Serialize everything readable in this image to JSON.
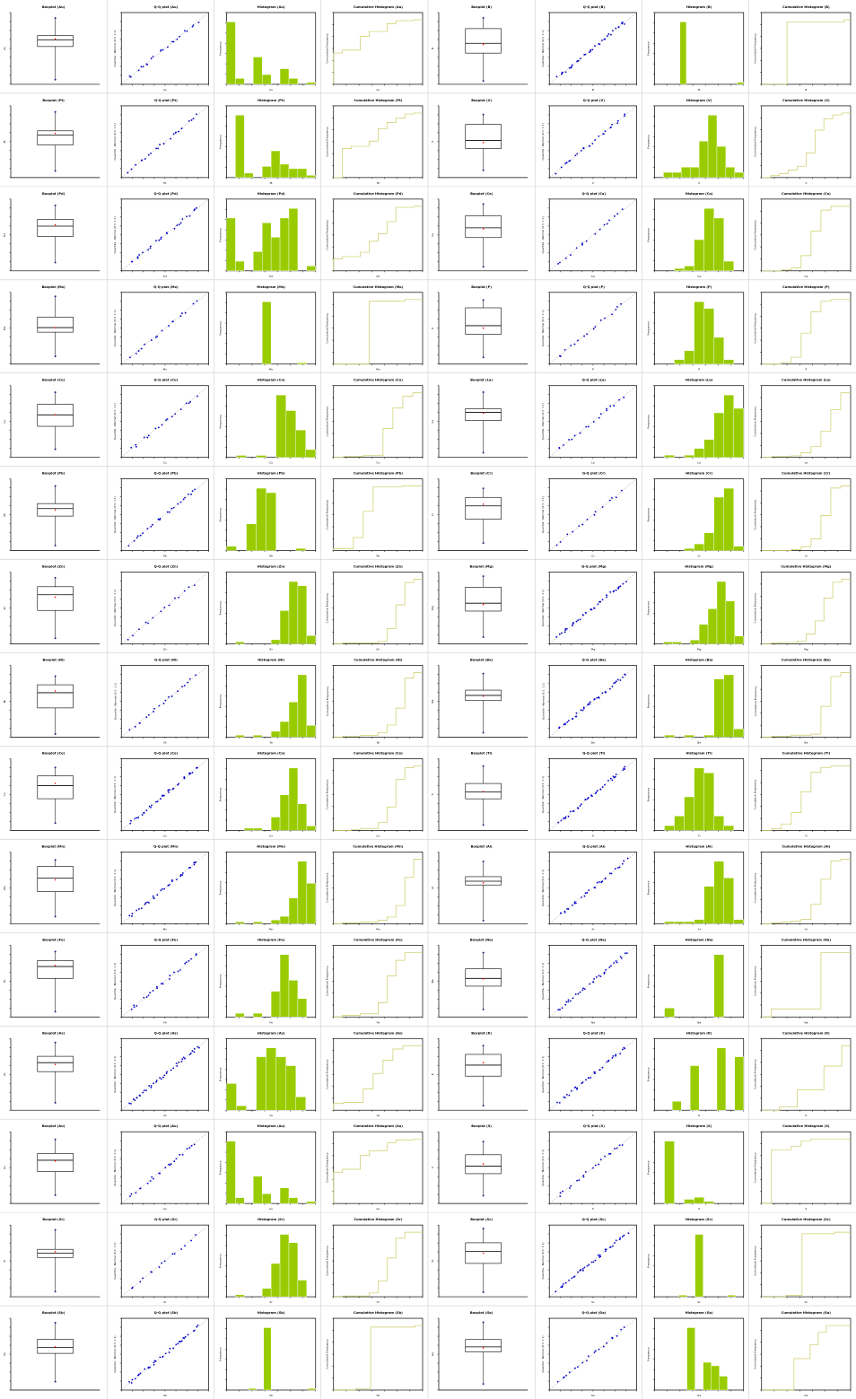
{
  "chart_data": {
    "type": "small-multiples",
    "layout": {
      "rows": 15,
      "cols": 8
    },
    "panel_titles": {
      "boxplot": "Boxplot ({el})",
      "qq": "Q-Q plot ({el})",
      "hist": "Histogram ({el})",
      "cum": "Cumulative Histogram ({el})"
    },
    "axis_labels": {
      "qq_ylabel": "Quantile - Normal (0.5, 1.1)",
      "hist_ylabel": "Frequency",
      "cum_ylabel": "Cumulative Frequency"
    },
    "colors": {
      "bar": "#99cc00",
      "bar_edge": "#000000",
      "points": "#0000cc",
      "cum_line": "#cccc66",
      "mean": "#ff0000",
      "ref_line": "#999999"
    },
    "elements": [
      [
        "Au",
        "B"
      ],
      [
        "Pt",
        "V"
      ],
      [
        "Pd",
        "Ca"
      ],
      [
        "Mo",
        "P"
      ],
      [
        "Cu",
        "La"
      ],
      [
        "Pb",
        "Cr"
      ],
      [
        "Zn",
        "Mg"
      ],
      [
        "Ni",
        "Ba"
      ],
      [
        "Co",
        "Ti"
      ],
      [
        "Mn",
        "Al"
      ],
      [
        "Fe",
        "Na"
      ],
      [
        "As",
        "K"
      ],
      [
        "Au",
        "S"
      ],
      [
        "Sr",
        "Sc"
      ],
      [
        "Sb",
        "Ga"
      ]
    ],
    "hist_counts": {
      "Au": [
        32,
        3,
        0,
        14,
        5,
        0,
        8,
        3,
        0,
        1
      ],
      "B": [
        0,
        0,
        0,
        0,
        30,
        0,
        0,
        0,
        0,
        0,
        0,
        0,
        0,
        1
      ],
      "Pt": [
        0,
        28,
        2,
        0,
        5,
        12,
        6,
        4,
        4,
        1
      ],
      "V": [
        0,
        2,
        2,
        4,
        4,
        14,
        24,
        12,
        4,
        2
      ],
      "Pd": [
        22,
        4,
        0,
        8,
        20,
        14,
        22,
        26,
        0,
        2
      ],
      "Ca": [
        0,
        0,
        1,
        2,
        13,
        26,
        22,
        4,
        0
      ],
      "Mo": [
        0,
        0,
        0,
        0,
        45,
        0,
        0,
        0,
        1,
        0
      ],
      "P": [
        0,
        0,
        2,
        6,
        28,
        25,
        12,
        2,
        0
      ],
      "Cu": [
        0,
        1,
        0,
        1,
        0,
        32,
        24,
        14,
        4
      ],
      "La": [
        0,
        1,
        0,
        1,
        4,
        8,
        20,
        28,
        22
      ],
      "Pb": [
        2,
        0,
        12,
        28,
        26,
        0,
        0,
        1,
        0
      ],
      "Cr": [
        0,
        0,
        0,
        1,
        3,
        8,
        24,
        28,
        2
      ],
      "Zn": [
        0,
        1,
        0,
        0,
        0,
        2,
        16,
        30,
        28,
        4
      ],
      "Mg": [
        0,
        1,
        1,
        0,
        2,
        10,
        18,
        32,
        22,
        4
      ],
      "Ni": [
        0,
        1,
        0,
        1,
        0,
        3,
        8,
        18,
        32,
        6
      ],
      "Ba": [
        0,
        1,
        0,
        1,
        0,
        1,
        28,
        30,
        4
      ],
      "Co": [
        0,
        0,
        1,
        1,
        0,
        6,
        16,
        28,
        12,
        2
      ],
      "Ti": [
        0,
        2,
        6,
        14,
        26,
        24,
        6,
        2,
        0
      ],
      "Mn": [
        0,
        1,
        0,
        1,
        0,
        2,
        4,
        14,
        34,
        22
      ],
      "Al": [
        0,
        1,
        1,
        1,
        2,
        18,
        30,
        22,
        2
      ],
      "Fe": [
        0,
        2,
        0,
        2,
        0,
        14,
        34,
        20,
        10,
        0
      ],
      "Na": [
        0,
        2,
        0,
        0,
        0,
        0,
        14,
        0,
        0
      ],
      "As": [
        6,
        1,
        0,
        12,
        14,
        12,
        10,
        3,
        0
      ],
      "K": [
        0,
        0,
        1,
        0,
        5,
        0,
        0,
        7,
        0,
        6
      ],
      "Sr": [
        0,
        1,
        0,
        0,
        4,
        16,
        30,
        26,
        8,
        0
      ],
      "Sc": [
        0,
        0,
        0,
        1,
        0,
        40,
        0,
        0,
        0,
        1,
        0
      ],
      "Sb": [
        0,
        0,
        0,
        1,
        0,
        38,
        0,
        0,
        0,
        0,
        0,
        1
      ],
      "Ga": [
        0,
        0,
        0,
        0,
        18,
        0,
        8,
        7,
        4,
        0,
        0
      ],
      "S": [
        0,
        30,
        0,
        2,
        3,
        1,
        0,
        0,
        0
      ]
    }
  }
}
